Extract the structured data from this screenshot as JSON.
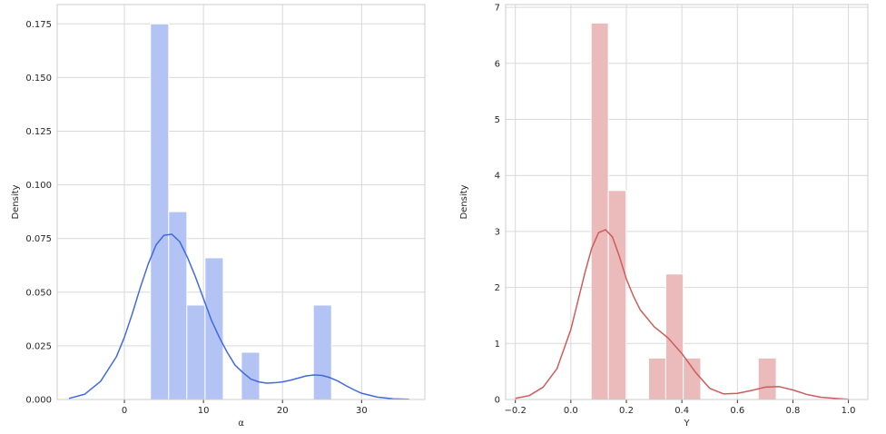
{
  "chart_data": [
    {
      "type": "histogram",
      "xlabel": "α",
      "ylabel": "Density",
      "xlim": [
        -8.5,
        38.0
      ],
      "ylim": [
        0,
        0.184
      ],
      "xticks": [
        0,
        10,
        20,
        30
      ],
      "yticks": [
        0.0,
        0.025,
        0.05,
        0.075,
        0.1,
        0.125,
        0.15,
        0.175
      ],
      "ytick_labels": [
        "0.000",
        "0.025",
        "0.050",
        "0.075",
        "0.100",
        "0.125",
        "0.150",
        "0.175"
      ],
      "grid": true,
      "colors": {
        "bars": "#b3c3f3",
        "kde": "#4169e1"
      },
      "bars": [
        {
          "x0": 3.3,
          "x1": 5.6,
          "value": 0.175
        },
        {
          "x0": 5.6,
          "x1": 7.9,
          "value": 0.0875
        },
        {
          "x0": 7.9,
          "x1": 10.2,
          "value": 0.044
        },
        {
          "x0": 10.2,
          "x1": 12.5,
          "value": 0.066
        },
        {
          "x0": 14.8,
          "x1": 17.1,
          "value": 0.022
        },
        {
          "x0": 23.9,
          "x1": 26.2,
          "value": 0.044
        }
      ],
      "kde": {
        "x": [
          -7,
          -5,
          -3,
          -1,
          0,
          1,
          2,
          3,
          4,
          5,
          6,
          7,
          8,
          9,
          10,
          11,
          12,
          13,
          14,
          15,
          16,
          17,
          18,
          19,
          20,
          21,
          22,
          23,
          24,
          25,
          26,
          27,
          28,
          29,
          30,
          32,
          34,
          36
        ],
        "y": [
          0.0005,
          0.0025,
          0.0085,
          0.02,
          0.029,
          0.04,
          0.052,
          0.063,
          0.072,
          0.0765,
          0.077,
          0.0735,
          0.066,
          0.057,
          0.047,
          0.037,
          0.029,
          0.022,
          0.016,
          0.0125,
          0.0095,
          0.0082,
          0.0076,
          0.0078,
          0.0082,
          0.009,
          0.01,
          0.011,
          0.0114,
          0.0112,
          0.0102,
          0.0086,
          0.0065,
          0.0046,
          0.0029,
          0.0011,
          0.0003,
          0.0001
        ]
      }
    },
    {
      "type": "histogram",
      "xlabel": "Υ",
      "ylabel": "Density",
      "xlim": [
        -0.235,
        1.07
      ],
      "ylim": [
        0,
        7.05
      ],
      "xticks": [
        -0.2,
        0.0,
        0.2,
        0.4,
        0.6,
        0.8,
        1.0
      ],
      "xtick_labels": [
        "−0.2",
        "0.0",
        "0.2",
        "0.4",
        "0.6",
        "0.8",
        "1.0"
      ],
      "yticks": [
        0,
        1,
        2,
        3,
        4,
        5,
        6,
        7
      ],
      "grid": true,
      "colors": {
        "bars": "#ebbaba",
        "kde": "#cd5c5c"
      },
      "bars": [
        {
          "x0": 0.073,
          "x1": 0.135,
          "value": 6.72
        },
        {
          "x0": 0.135,
          "x1": 0.199,
          "value": 3.73
        },
        {
          "x0": 0.28,
          "x1": 0.342,
          "value": 0.74
        },
        {
          "x0": 0.342,
          "x1": 0.405,
          "value": 2.24
        },
        {
          "x0": 0.405,
          "x1": 0.468,
          "value": 0.74
        },
        {
          "x0": 0.675,
          "x1": 0.74,
          "value": 0.74
        }
      ],
      "kde": {
        "x": [
          -0.2,
          -0.15,
          -0.1,
          -0.05,
          0.0,
          0.025,
          0.05,
          0.075,
          0.1,
          0.125,
          0.15,
          0.175,
          0.2,
          0.225,
          0.25,
          0.3,
          0.35,
          0.4,
          0.45,
          0.5,
          0.55,
          0.6,
          0.65,
          0.7,
          0.75,
          0.8,
          0.85,
          0.9,
          0.95,
          1.0
        ],
        "y": [
          0.02,
          0.07,
          0.22,
          0.55,
          1.25,
          1.75,
          2.25,
          2.7,
          2.98,
          3.03,
          2.9,
          2.55,
          2.15,
          1.85,
          1.6,
          1.3,
          1.1,
          0.82,
          0.48,
          0.2,
          0.1,
          0.11,
          0.16,
          0.22,
          0.23,
          0.17,
          0.09,
          0.04,
          0.02,
          0.005
        ]
      }
    }
  ]
}
